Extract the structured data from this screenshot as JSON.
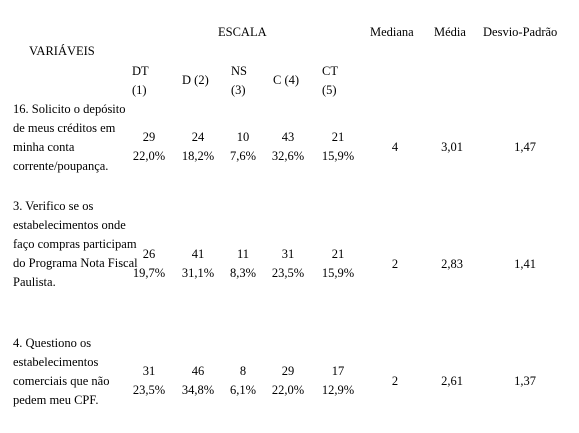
{
  "header": {
    "variables_label": "VARIÁVEIS",
    "scale_label": "ESCALA",
    "median_label": "Mediana",
    "mean_label": "Média",
    "stddev_label": "Desvio-Padrão",
    "scale_columns": [
      {
        "code": "DT",
        "num": "(1)"
      },
      {
        "code": "D (2)",
        "num": ""
      },
      {
        "code": "NS",
        "num": "(3)"
      },
      {
        "code": "C (4)",
        "num": ""
      },
      {
        "code": "CT",
        "num": "(5)"
      }
    ]
  },
  "rows": [
    {
      "variable": "16. Solicito o depósito de meus créditos em minha conta corrente/poupança.",
      "cells": [
        {
          "count": "29",
          "pct": "22,0%"
        },
        {
          "count": "24",
          "pct": "18,2%"
        },
        {
          "count": "10",
          "pct": "7,6%"
        },
        {
          "count": "43",
          "pct": "32,6%"
        },
        {
          "count": "21",
          "pct": "15,9%"
        }
      ],
      "median": "4",
      "mean": "3,01",
      "stddev": "1,47"
    },
    {
      "variable": "3. Verifico se os estabelecimentos onde faço compras participam do Programa Nota Fiscal Paulista.",
      "cells": [
        {
          "count": "26",
          "pct": "19,7%"
        },
        {
          "count": "41",
          "pct": "31,1%"
        },
        {
          "count": "11",
          "pct": "8,3%"
        },
        {
          "count": "31",
          "pct": "23,5%"
        },
        {
          "count": "21",
          "pct": "15,9%"
        }
      ],
      "median": "2",
      "mean": "2,83",
      "stddev": "1,41"
    },
    {
      "variable": "4. Questiono os estabelecimentos comerciais que não pedem meu CPF.",
      "cells": [
        {
          "count": "31",
          "pct": "23,5%"
        },
        {
          "count": "46",
          "pct": "34,8%"
        },
        {
          "count": "8",
          "pct": "6,1%"
        },
        {
          "count": "29",
          "pct": "22,0%"
        },
        {
          "count": "17",
          "pct": "12,9%"
        }
      ],
      "median": "2",
      "mean": "2,61",
      "stddev": "1,37"
    }
  ]
}
